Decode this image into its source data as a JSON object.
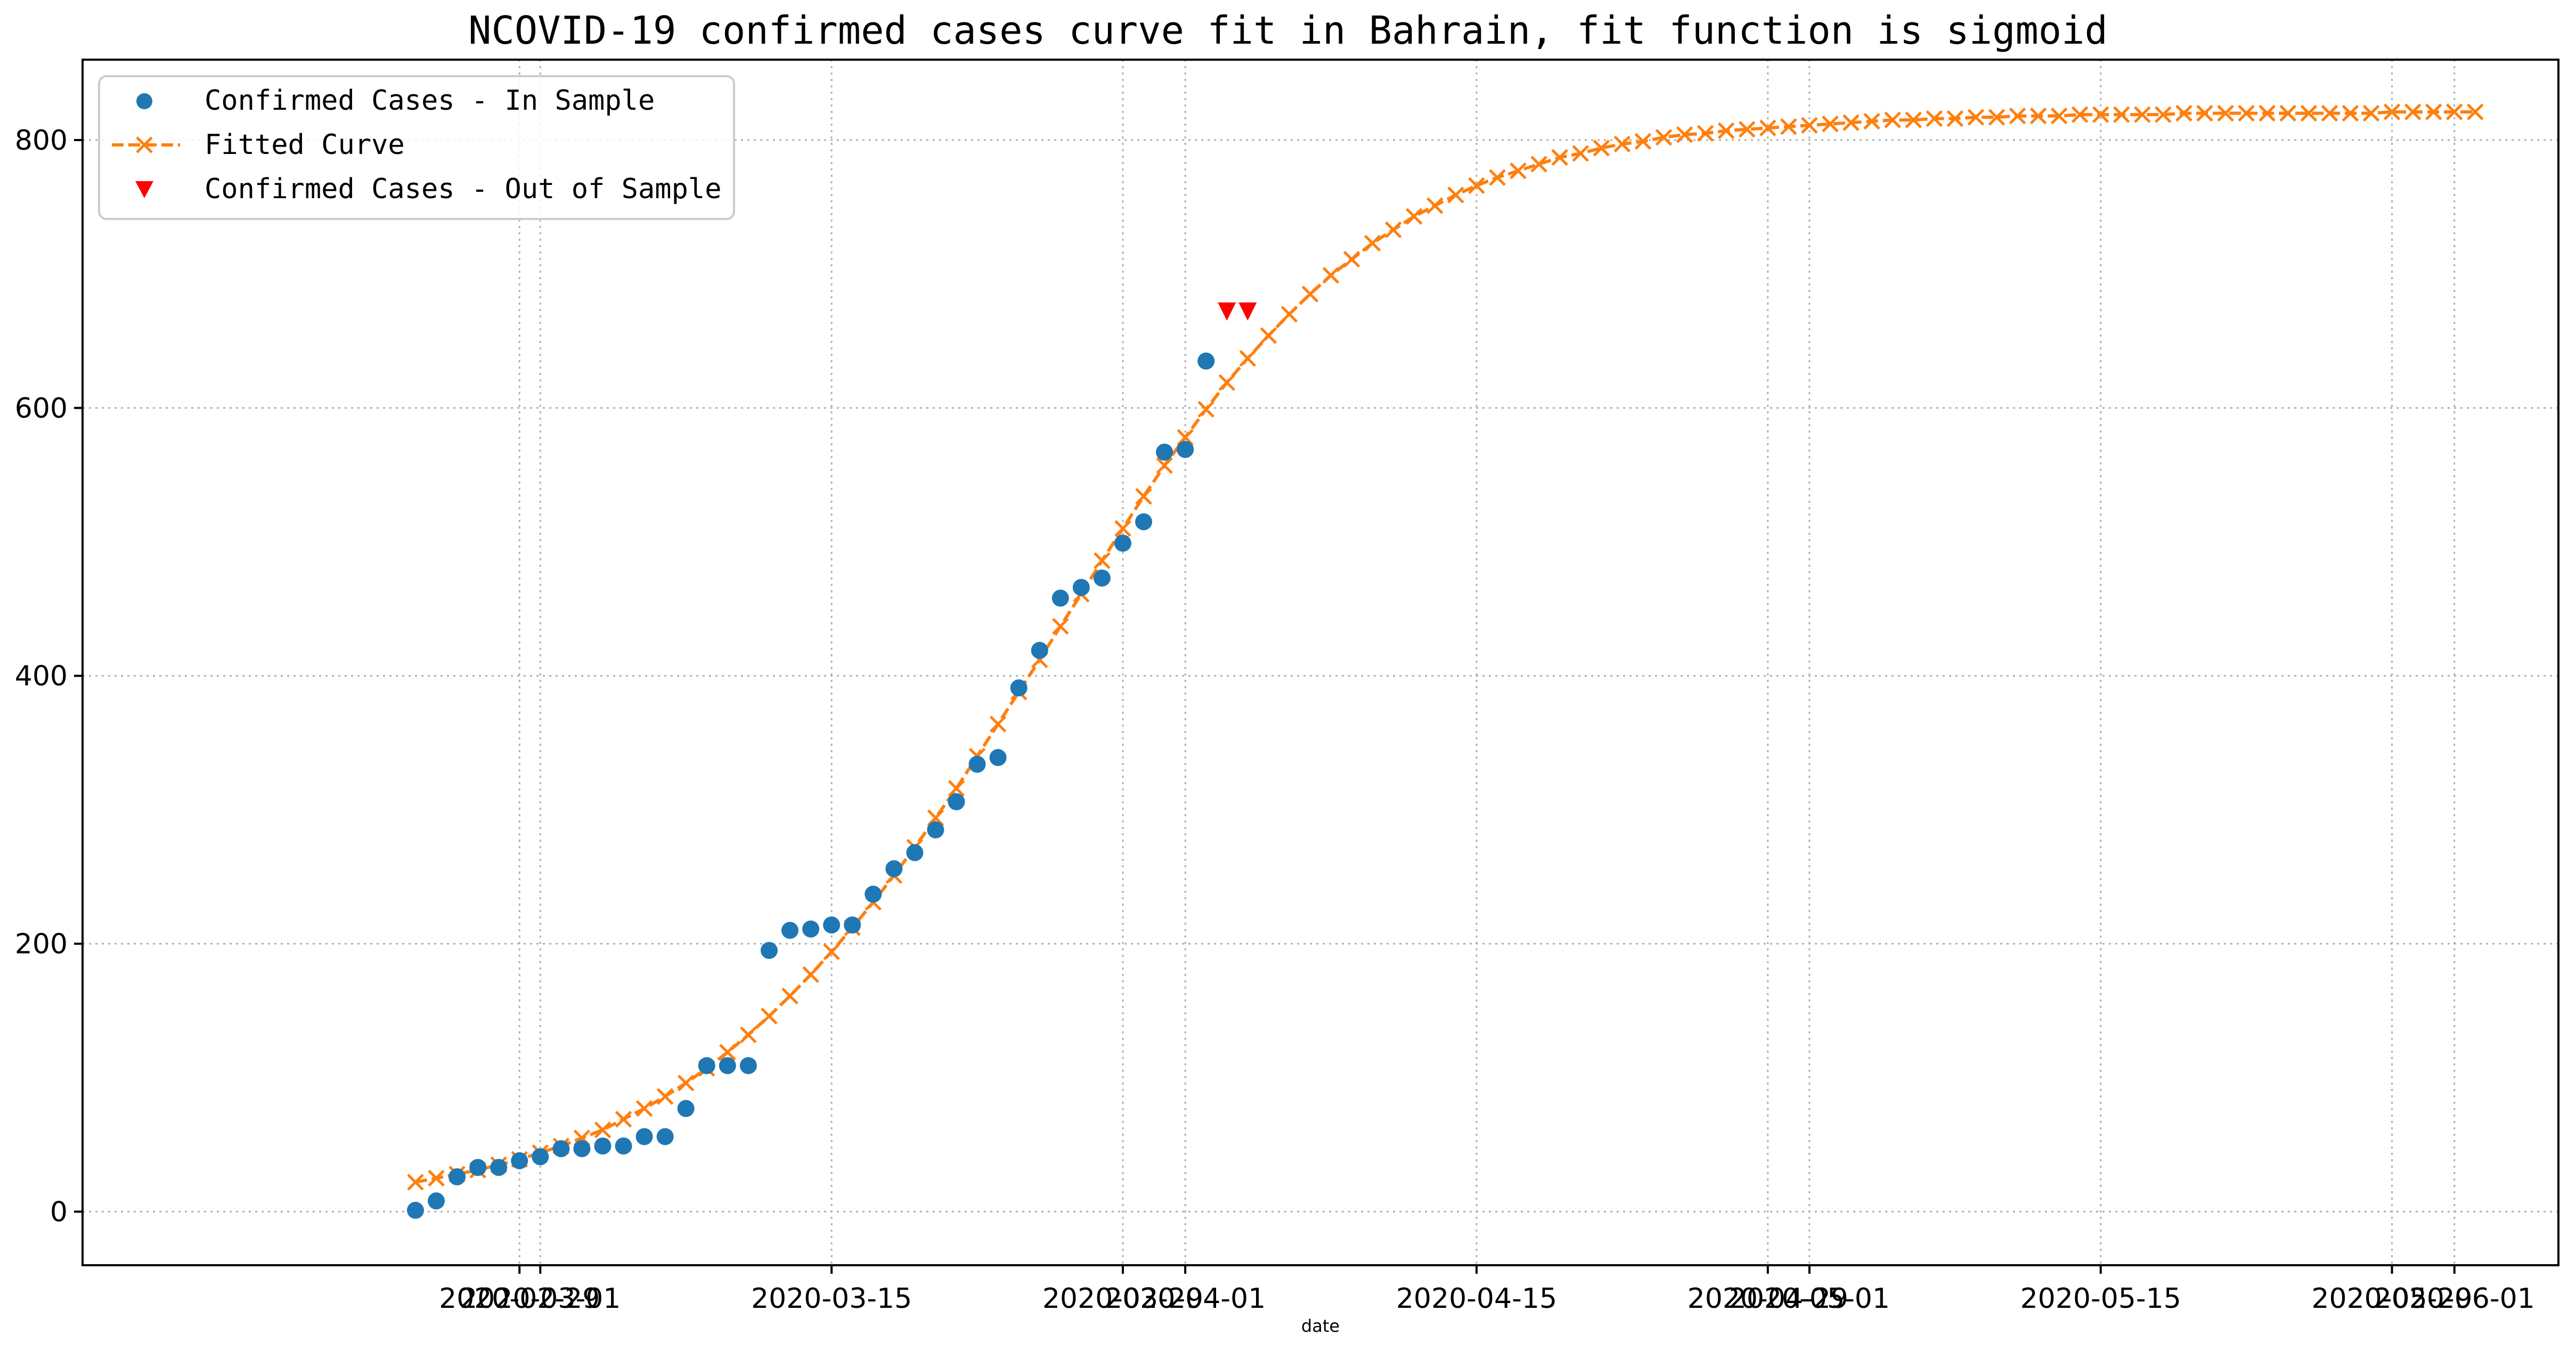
{
  "chart_data": {
    "type": "line",
    "title": "NCOVID-19 confirmed cases curve fit in Bahrain, fit function is sigmoid",
    "xlabel": "date",
    "ylabel": "",
    "grid": true,
    "legend_position": "top-left",
    "xlim": [
      "2020-02-08",
      "2020-06-06"
    ],
    "ylim": [
      -40,
      860
    ],
    "y_ticks": [
      "0",
      "200",
      "400",
      "600",
      "800"
    ],
    "x_ticks": [
      {
        "date": "2020-02-29",
        "label": "2020-02-29"
      },
      {
        "date": "2020-03-01",
        "label": "2020-03-01"
      },
      {
        "date": "2020-03-15",
        "label": "2020-03-15"
      },
      {
        "date": "2020-03-29",
        "label": "2020-03-29"
      },
      {
        "date": "2020-04-01",
        "label": "2020-04-01"
      },
      {
        "date": "2020-04-15",
        "label": "2020-04-15"
      },
      {
        "date": "2020-04-29",
        "label": "2020-04-29"
      },
      {
        "date": "2020-05-01",
        "label": "2020-05-01"
      },
      {
        "date": "2020-05-15",
        "label": "2020-05-15"
      },
      {
        "date": "2020-05-29",
        "label": "2020-05-29"
      },
      {
        "date": "2020-06-01",
        "label": "2020-06-01"
      }
    ],
    "series": [
      {
        "name": "Confirmed Cases - In Sample",
        "style": "marker-circle",
        "color": "#1f77b4",
        "x_start": "2020-02-24",
        "x_step_days": 1,
        "values": [
          1,
          8,
          26,
          33,
          33,
          38,
          41,
          47,
          47,
          49,
          49,
          56,
          56,
          77,
          109,
          109,
          109,
          195,
          210,
          211,
          214,
          214,
          237,
          256,
          268,
          285,
          306,
          334,
          339,
          391,
          419,
          458,
          466,
          473,
          499,
          515,
          567,
          569,
          635
        ]
      },
      {
        "name": "Fitted Curve",
        "style": "dashed-line-x-marker",
        "color": "#ff7f0e",
        "x_start": "2020-02-24",
        "x_step_days": 1,
        "values": [
          22,
          25,
          28,
          31,
          35,
          39,
          44,
          49,
          55,
          61,
          69,
          77,
          86,
          96,
          107,
          119,
          132,
          146,
          161,
          177,
          194,
          212,
          231,
          251,
          272,
          294,
          316,
          340,
          364,
          388,
          412,
          437,
          461,
          486,
          510,
          534,
          557,
          578,
          599,
          619,
          637,
          654,
          670,
          685,
          699,
          711,
          723,
          733,
          743,
          751,
          759,
          766,
          772,
          777,
          782,
          787,
          790,
          794,
          797,
          799,
          802,
          804,
          805,
          807,
          808,
          809,
          810,
          811,
          812,
          813,
          814,
          815,
          815,
          816,
          816,
          817,
          817,
          818,
          818,
          818,
          819,
          819,
          819,
          819,
          819,
          820,
          820,
          820,
          820,
          820,
          820,
          820,
          820,
          820,
          820,
          821,
          821,
          821,
          821,
          821
        ]
      },
      {
        "name": "Confirmed Cases - Out of Sample",
        "style": "marker-triangle-down",
        "color": "#ff0000",
        "x": [
          "2020-04-03",
          "2020-04-04"
        ],
        "values": [
          672,
          672
        ]
      }
    ]
  }
}
